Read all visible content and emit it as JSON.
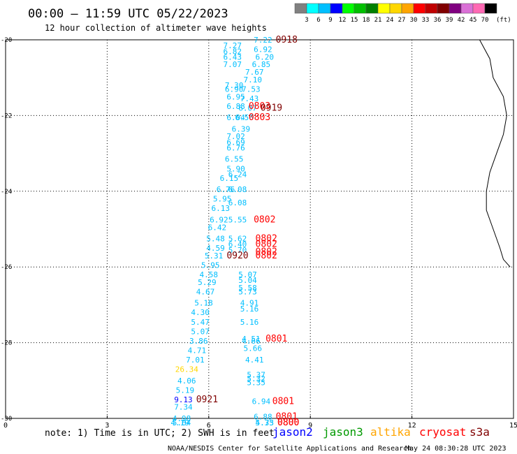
{
  "header": {
    "title": "00:00 — 11:59 UTC 05/22/2023",
    "subtitle": "12 hour collection of altimeter wave heights"
  },
  "colorbar": {
    "ticks": [
      "3",
      "6",
      "9",
      "12",
      "15",
      "18",
      "21",
      "24",
      "27",
      "30",
      "33",
      "36",
      "39",
      "42",
      "45",
      "70"
    ],
    "unit": "(ft)",
    "colors": [
      "#808080",
      "#00ffff",
      "#00bfff",
      "#0000ff",
      "#00ff00",
      "#00c000",
      "#008000",
      "#ffff00",
      "#ffd700",
      "#ffa500",
      "#ff0000",
      "#c00000",
      "#800000",
      "#800080",
      "#da70d6",
      "#ff69b4",
      "#000000"
    ]
  },
  "footer": {
    "note": "note: 1) Time is in UTC; 2) SWH is in feet",
    "credit": "NOAA/NESDIS Center for Satellite Applications and Research",
    "timestamp": "May 24 08:30:28 UTC 2023"
  },
  "legend": [
    {
      "name": "jason2",
      "color": "#0000ff"
    },
    {
      "name": "jason3",
      "color": "#009900"
    },
    {
      "name": "altika",
      "color": "#ffa500"
    },
    {
      "name": "cryosat",
      "color": "#ff0000"
    },
    {
      "name": "s3a",
      "color": "#800000"
    }
  ],
  "chart_data": {
    "type": "scatter",
    "xlim": [
      0,
      15
    ],
    "ylim": [
      -30,
      -20
    ],
    "xticks": [
      "0",
      "3",
      "6",
      "9",
      "12",
      "15"
    ],
    "yticks": [
      "-20",
      "-22",
      "-24",
      "-26",
      "-28",
      "-30"
    ],
    "grid": true,
    "coastline": [
      [
        14.0,
        -20.0
      ],
      [
        14.3,
        -20.5
      ],
      [
        14.4,
        -21.0
      ],
      [
        14.7,
        -21.5
      ],
      [
        14.8,
        -22.0
      ],
      [
        14.7,
        -22.5
      ],
      [
        14.5,
        -23.0
      ],
      [
        14.3,
        -23.5
      ],
      [
        14.2,
        -24.0
      ],
      [
        14.2,
        -24.5
      ],
      [
        14.4,
        -25.0
      ],
      [
        14.6,
        -25.5
      ],
      [
        14.7,
        -25.8
      ],
      [
        14.9,
        -26.0
      ]
    ],
    "points": [
      {
        "x": 7.6,
        "y": -20.0,
        "label": "7.22",
        "color": "#00bfff"
      },
      {
        "x": 8.3,
        "y": -20.0,
        "label": "0918",
        "color": "#800000"
      },
      {
        "x": 6.7,
        "y": -20.15,
        "label": "7.27",
        "color": "#00bfff"
      },
      {
        "x": 7.6,
        "y": -20.25,
        "label": "6.92",
        "color": "#00bfff"
      },
      {
        "x": 6.7,
        "y": -20.3,
        "label": "6.82",
        "color": "#00bfff"
      },
      {
        "x": 6.7,
        "y": -20.45,
        "label": "6.43",
        "color": "#00bfff"
      },
      {
        "x": 7.65,
        "y": -20.45,
        "label": "6.20",
        "color": "#00bfff"
      },
      {
        "x": 6.7,
        "y": -20.65,
        "label": "7.07",
        "color": "#00bfff"
      },
      {
        "x": 7.55,
        "y": -20.65,
        "label": "6.85",
        "color": "#00bfff"
      },
      {
        "x": 7.35,
        "y": -20.85,
        "label": "7.67",
        "color": "#00bfff"
      },
      {
        "x": 7.3,
        "y": -21.05,
        "label": "7.10",
        "color": "#00bfff"
      },
      {
        "x": 6.75,
        "y": -21.2,
        "label": "7.30",
        "color": "#00bfff"
      },
      {
        "x": 6.75,
        "y": -21.3,
        "label": "6.90",
        "color": "#00bfff"
      },
      {
        "x": 7.25,
        "y": -21.3,
        "label": "7.53",
        "color": "#00bfff"
      },
      {
        "x": 6.8,
        "y": -21.5,
        "label": "6.95",
        "color": "#00bfff"
      },
      {
        "x": 7.2,
        "y": -21.55,
        "label": "7.43",
        "color": "#00bfff"
      },
      {
        "x": 6.8,
        "y": -21.75,
        "label": "6.88",
        "color": "#00bfff"
      },
      {
        "x": 7.15,
        "y": -21.8,
        "label": "6.07",
        "color": "#00bfff"
      },
      {
        "x": 7.5,
        "y": -21.75,
        "label": "0803",
        "color": "#ff0000"
      },
      {
        "x": 7.85,
        "y": -21.8,
        "label": "0919",
        "color": "#800000"
      },
      {
        "x": 6.8,
        "y": -22.05,
        "label": "6.04",
        "color": "#00bfff"
      },
      {
        "x": 7.05,
        "y": -22.05,
        "label": "6.56",
        "color": "#00bfff"
      },
      {
        "x": 7.5,
        "y": -22.05,
        "label": "0803",
        "color": "#ff0000"
      },
      {
        "x": 6.95,
        "y": -22.35,
        "label": "6.39",
        "color": "#00bfff"
      },
      {
        "x": 6.8,
        "y": -22.55,
        "label": "7.02",
        "color": "#00bfff"
      },
      {
        "x": 6.8,
        "y": -22.7,
        "label": "6.69",
        "color": "#00bfff"
      },
      {
        "x": 6.8,
        "y": -22.85,
        "label": "6.76",
        "color": "#00bfff"
      },
      {
        "x": 6.75,
        "y": -23.15,
        "label": "6.55",
        "color": "#00bfff"
      },
      {
        "x": 6.8,
        "y": -23.4,
        "label": "5.90",
        "color": "#00bfff"
      },
      {
        "x": 6.85,
        "y": -23.55,
        "label": "6.24",
        "color": "#00bfff"
      },
      {
        "x": 6.6,
        "y": -23.65,
        "label": "6.15",
        "color": "#00bfff"
      },
      {
        "x": 6.5,
        "y": -23.95,
        "label": "6.76",
        "color": "#00bfff"
      },
      {
        "x": 6.85,
        "y": -23.95,
        "label": "6.08",
        "color": "#00bfff"
      },
      {
        "x": 6.4,
        "y": -24.2,
        "label": "5.95",
        "color": "#00bfff"
      },
      {
        "x": 6.85,
        "y": -24.3,
        "label": "6.08",
        "color": "#00bfff"
      },
      {
        "x": 6.35,
        "y": -24.45,
        "label": "6.13",
        "color": "#00bfff"
      },
      {
        "x": 6.3,
        "y": -24.75,
        "label": "6.92",
        "color": "#00bfff"
      },
      {
        "x": 6.85,
        "y": -24.75,
        "label": "5.55",
        "color": "#00bfff"
      },
      {
        "x": 7.65,
        "y": -24.75,
        "label": "0802",
        "color": "#ff0000"
      },
      {
        "x": 6.25,
        "y": -24.95,
        "label": "6.42",
        "color": "#00bfff"
      },
      {
        "x": 6.2,
        "y": -25.25,
        "label": "5.48",
        "color": "#00bfff"
      },
      {
        "x": 6.85,
        "y": -25.25,
        "label": "5.62",
        "color": "#00bfff"
      },
      {
        "x": 7.7,
        "y": -25.25,
        "label": "0802",
        "color": "#ff0000"
      },
      {
        "x": 6.85,
        "y": -25.4,
        "label": "6.40",
        "color": "#00bfff"
      },
      {
        "x": 7.7,
        "y": -25.4,
        "label": "0802",
        "color": "#ff0000"
      },
      {
        "x": 6.2,
        "y": -25.5,
        "label": "4.59",
        "color": "#00bfff"
      },
      {
        "x": 6.85,
        "y": -25.55,
        "label": "5.70",
        "color": "#00bfff"
      },
      {
        "x": 7.7,
        "y": -25.6,
        "label": "0802",
        "color": "#ff0000"
      },
      {
        "x": 6.15,
        "y": -25.7,
        "label": "5.31",
        "color": "#00bfff"
      },
      {
        "x": 6.85,
        "y": -25.7,
        "label": "0920",
        "color": "#800000"
      },
      {
        "x": 7.7,
        "y": -25.7,
        "label": "0802",
        "color": "#ff0000"
      },
      {
        "x": 6.05,
        "y": -25.95,
        "label": "5.95",
        "color": "#00bfff"
      },
      {
        "x": 6.0,
        "y": -26.2,
        "label": "4.58",
        "color": "#00bfff"
      },
      {
        "x": 7.15,
        "y": -26.2,
        "label": "5.07",
        "color": "#00bfff"
      },
      {
        "x": 5.95,
        "y": -26.4,
        "label": "5.29",
        "color": "#00bfff"
      },
      {
        "x": 7.15,
        "y": -26.35,
        "label": "5.04",
        "color": "#00bfff"
      },
      {
        "x": 7.15,
        "y": -26.55,
        "label": "5.58",
        "color": "#00bfff"
      },
      {
        "x": 5.9,
        "y": -26.65,
        "label": "4.67",
        "color": "#00bfff"
      },
      {
        "x": 7.15,
        "y": -26.65,
        "label": "5.73",
        "color": "#00bfff"
      },
      {
        "x": 5.85,
        "y": -26.95,
        "label": "5.18",
        "color": "#00bfff"
      },
      {
        "x": 7.2,
        "y": -26.95,
        "label": "4.91",
        "color": "#00bfff"
      },
      {
        "x": 7.2,
        "y": -27.1,
        "label": "5.16",
        "color": "#00bfff"
      },
      {
        "x": 5.75,
        "y": -27.2,
        "label": "4.30",
        "color": "#00bfff"
      },
      {
        "x": 5.75,
        "y": -27.45,
        "label": "5.47",
        "color": "#00bfff"
      },
      {
        "x": 7.2,
        "y": -27.45,
        "label": "5.16",
        "color": "#00bfff"
      },
      {
        "x": 5.75,
        "y": -27.7,
        "label": "5.07",
        "color": "#00bfff"
      },
      {
        "x": 5.7,
        "y": -27.95,
        "label": "3.86",
        "color": "#00bfff"
      },
      {
        "x": 7.25,
        "y": -27.9,
        "label": "4.51",
        "color": "#00bfff"
      },
      {
        "x": 7.25,
        "y": -27.95,
        "label": "4.66",
        "color": "#00bfff"
      },
      {
        "x": 8.0,
        "y": -27.9,
        "label": "0801",
        "color": "#ff0000"
      },
      {
        "x": 7.3,
        "y": -28.15,
        "label": "5.66",
        "color": "#00bfff"
      },
      {
        "x": 5.65,
        "y": -28.2,
        "label": "4.71",
        "color": "#00bfff"
      },
      {
        "x": 5.6,
        "y": -28.45,
        "label": "7.01",
        "color": "#00bfff"
      },
      {
        "x": 7.35,
        "y": -28.45,
        "label": "4.41",
        "color": "#00bfff"
      },
      {
        "x": 5.35,
        "y": -28.7,
        "label": "26.34",
        "color": "#ffd700"
      },
      {
        "x": 7.4,
        "y": -28.85,
        "label": "5.37",
        "color": "#00bfff"
      },
      {
        "x": 7.4,
        "y": -28.95,
        "label": "5.32",
        "color": "#00bfff"
      },
      {
        "x": 5.35,
        "y": -29.0,
        "label": "4.06",
        "color": "#00bfff"
      },
      {
        "x": 7.4,
        "y": -29.05,
        "label": "5.35",
        "color": "#00bfff"
      },
      {
        "x": 5.3,
        "y": -29.25,
        "label": "5.19",
        "color": "#00bfff"
      },
      {
        "x": 5.25,
        "y": -29.5,
        "label": "9.13",
        "color": "#0000ff"
      },
      {
        "x": 5.95,
        "y": -29.5,
        "label": "0921",
        "color": "#800000"
      },
      {
        "x": 7.55,
        "y": -29.55,
        "label": "6.94",
        "color": "#00bfff"
      },
      {
        "x": 8.2,
        "y": -29.55,
        "label": "0801",
        "color": "#ff0000"
      },
      {
        "x": 5.25,
        "y": -29.7,
        "label": "7.34",
        "color": "#00bfff"
      },
      {
        "x": 5.2,
        "y": -30.0,
        "label": "4.98",
        "color": "#00bfff"
      },
      {
        "x": 7.6,
        "y": -29.95,
        "label": "6.88",
        "color": "#00bfff"
      },
      {
        "x": 8.3,
        "y": -29.95,
        "label": "0801",
        "color": "#ff0000"
      },
      {
        "x": 5.2,
        "y": -30.3,
        "label": "5.64",
        "color": "#00bfff"
      },
      {
        "x": 7.65,
        "y": -30.3,
        "label": "4.75",
        "color": "#00bfff"
      },
      {
        "x": 8.35,
        "y": -30.3,
        "label": "0800",
        "color": "#ff0000"
      },
      {
        "x": 5.15,
        "y": -30.55,
        "label": "4.19",
        "color": "#00bfff"
      },
      {
        "x": 7.65,
        "y": -30.5,
        "label": "5.33",
        "color": "#00bfff"
      },
      {
        "x": 8.35,
        "y": -30.45,
        "label": "0800",
        "color": "#ff0000"
      }
    ]
  }
}
